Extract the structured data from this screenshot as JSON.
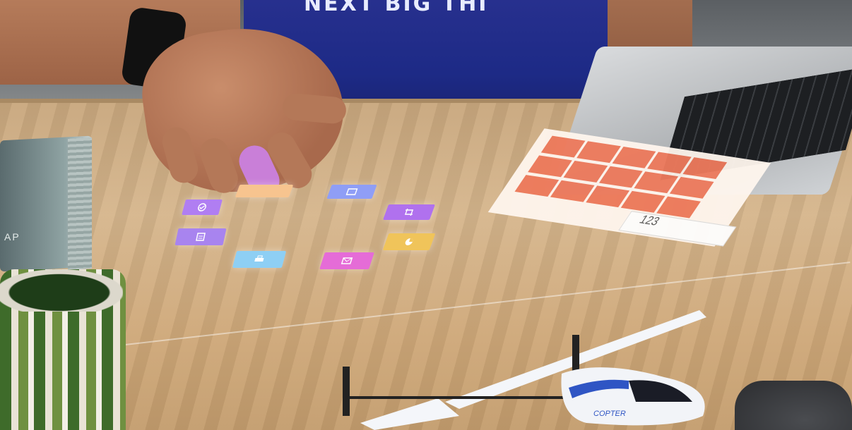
{
  "scene": {
    "shirt_text": "NEXT BIG THI",
    "book_spine_text": "AP",
    "projected_tiles": [
      {
        "name": "fingertip-tile",
        "icon": "highlighted-tile",
        "color": "#f7c48f"
      },
      {
        "name": "tile-check",
        "icon": "check-icon",
        "color": "#b07ef2"
      },
      {
        "name": "tile-window",
        "icon": "window-icon",
        "color": "#8f9ef6"
      },
      {
        "name": "tile-crop",
        "icon": "crop-icon",
        "color": "#b071ee"
      },
      {
        "name": "tile-document",
        "icon": "document-icon",
        "color": "#a884ef"
      },
      {
        "name": "tile-pie",
        "icon": "pie-icon",
        "color": "#f0c45a"
      },
      {
        "name": "tile-print",
        "icon": "print-icon",
        "color": "#8ecff4"
      },
      {
        "name": "tile-mail",
        "icon": "mail-icon",
        "color": "#e56cd7"
      }
    ],
    "projected_keypad": {
      "key_color": "#ee7a5c",
      "readout": "123"
    },
    "helicopter_label": "COPTER"
  }
}
